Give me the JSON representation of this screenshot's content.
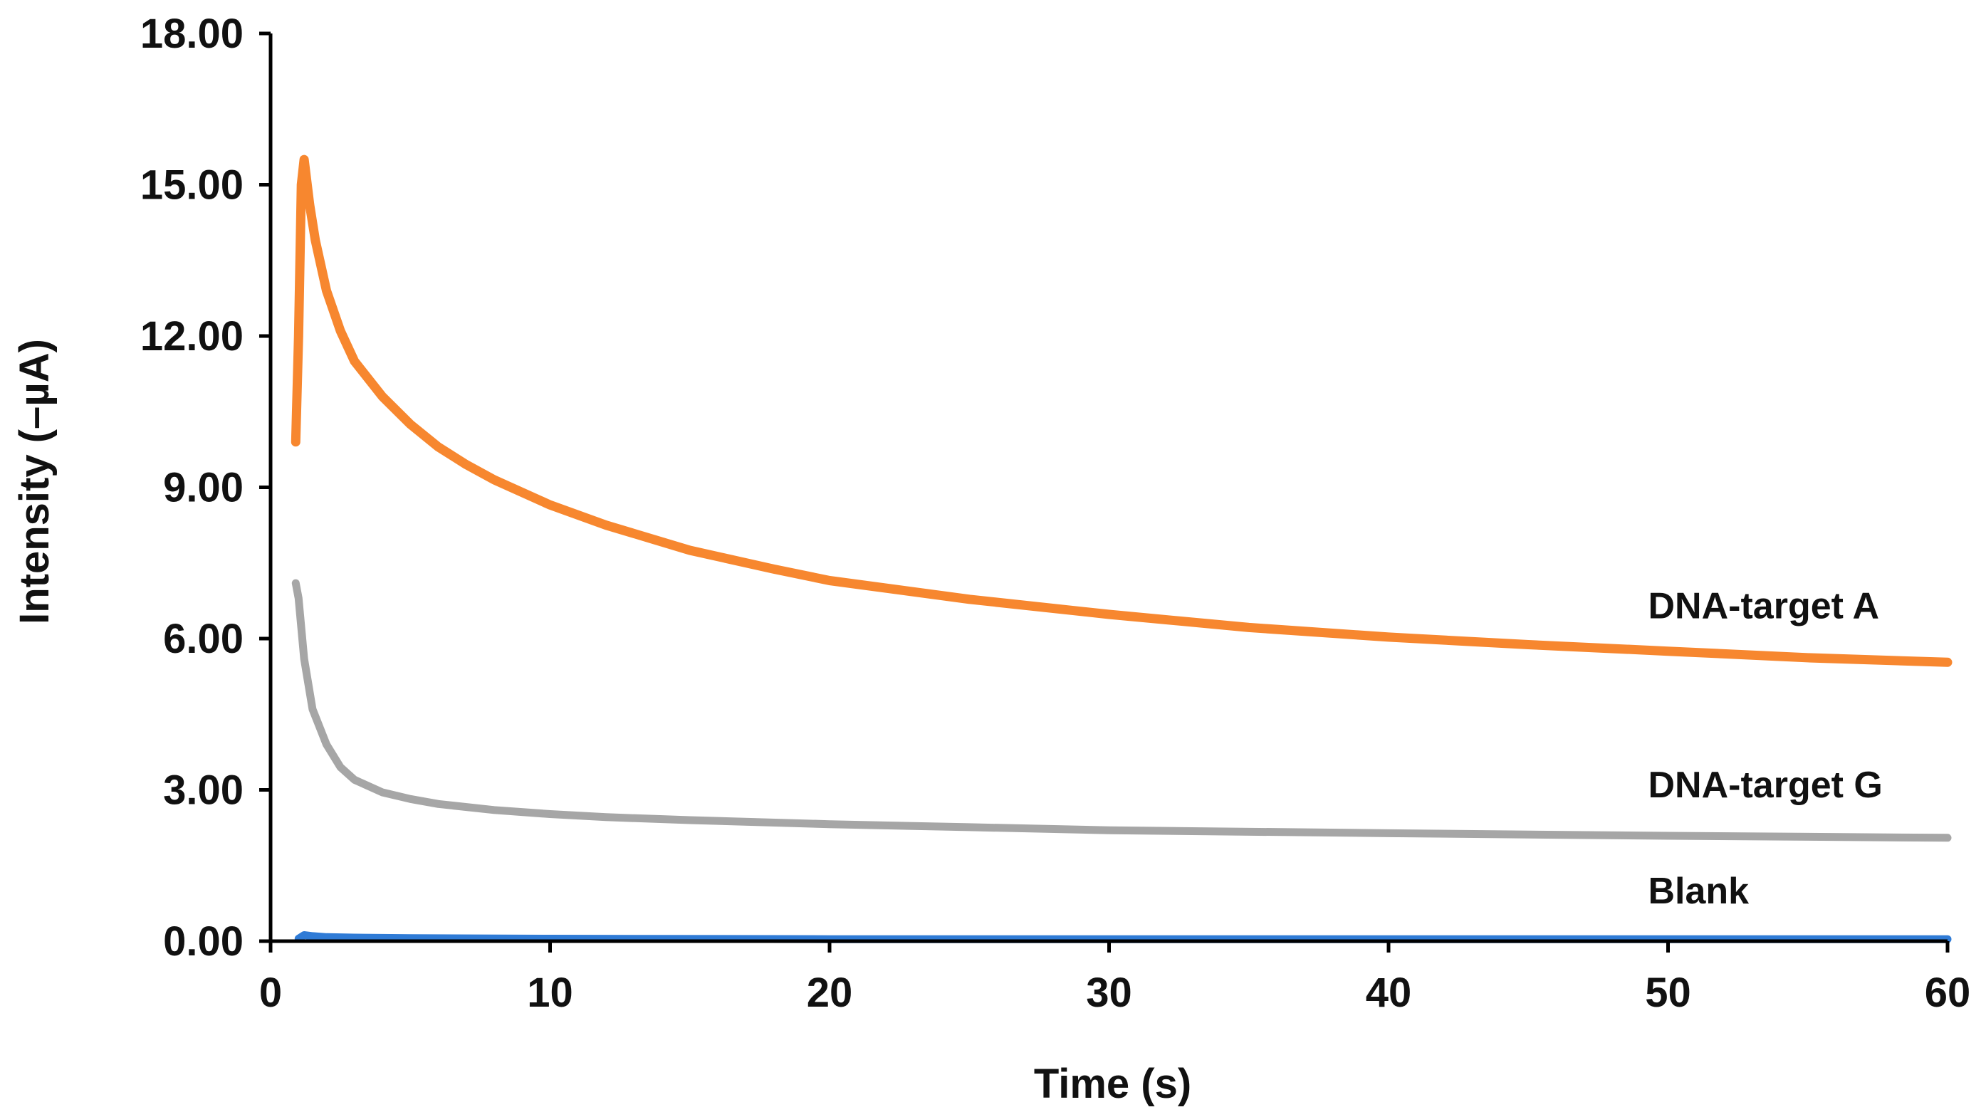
{
  "chart_data": {
    "type": "line",
    "title": "",
    "xlabel": "Time (s)",
    "ylabel": "Intensity (–µA)",
    "xlim": [
      0,
      60
    ],
    "ylim": [
      0,
      18
    ],
    "xticks": [
      0,
      10,
      20,
      30,
      40,
      50,
      60
    ],
    "xtick_labels": [
      "0",
      "10",
      "20",
      "30",
      "40",
      "50",
      "60"
    ],
    "yticks": [
      0,
      3,
      6,
      9,
      12,
      15,
      18
    ],
    "ytick_labels": [
      "0.00",
      "3.00",
      "6.00",
      "9.00",
      "12.00",
      "15.00",
      "18.00"
    ],
    "grid": false,
    "series": [
      {
        "name": "DNA-target A",
        "label": "DNA-target A",
        "color": "#F7872F",
        "x": [
          0.9,
          1.0,
          1.1,
          1.2,
          1.4,
          1.6,
          2,
          2.5,
          3,
          4,
          5,
          6,
          7,
          8,
          10,
          12,
          15,
          18,
          20,
          25,
          30,
          35,
          40,
          45,
          50,
          55,
          60
        ],
        "y": [
          9.9,
          12.0,
          15.0,
          15.5,
          14.6,
          13.9,
          12.9,
          12.1,
          11.5,
          10.8,
          10.25,
          9.8,
          9.45,
          9.15,
          8.65,
          8.25,
          7.75,
          7.38,
          7.15,
          6.78,
          6.48,
          6.22,
          6.03,
          5.88,
          5.75,
          5.62,
          5.53
        ]
      },
      {
        "name": "DNA-target G",
        "label": "DNA-target G",
        "color": "#A6A6A6",
        "x": [
          0.9,
          1.0,
          1.2,
          1.5,
          2,
          2.5,
          3,
          4,
          5,
          6,
          8,
          10,
          12,
          15,
          20,
          25,
          30,
          40,
          50,
          60
        ],
        "y": [
          7.1,
          6.8,
          5.6,
          4.6,
          3.9,
          3.45,
          3.2,
          2.95,
          2.82,
          2.72,
          2.6,
          2.52,
          2.46,
          2.4,
          2.32,
          2.26,
          2.2,
          2.14,
          2.09,
          2.05
        ]
      },
      {
        "name": "Blank",
        "label": "Blank",
        "color": "#2F7BD6",
        "x": [
          1.0,
          1.2,
          1.5,
          2,
          3,
          5,
          10,
          20,
          30,
          40,
          50,
          60
        ],
        "y": [
          0.05,
          0.12,
          0.1,
          0.08,
          0.07,
          0.06,
          0.05,
          0.04,
          0.04,
          0.04,
          0.04,
          0.04
        ]
      }
    ],
    "label_anchor_x": 50,
    "label_anchor_y": [
      6.4,
      2.85,
      0.75
    ]
  }
}
